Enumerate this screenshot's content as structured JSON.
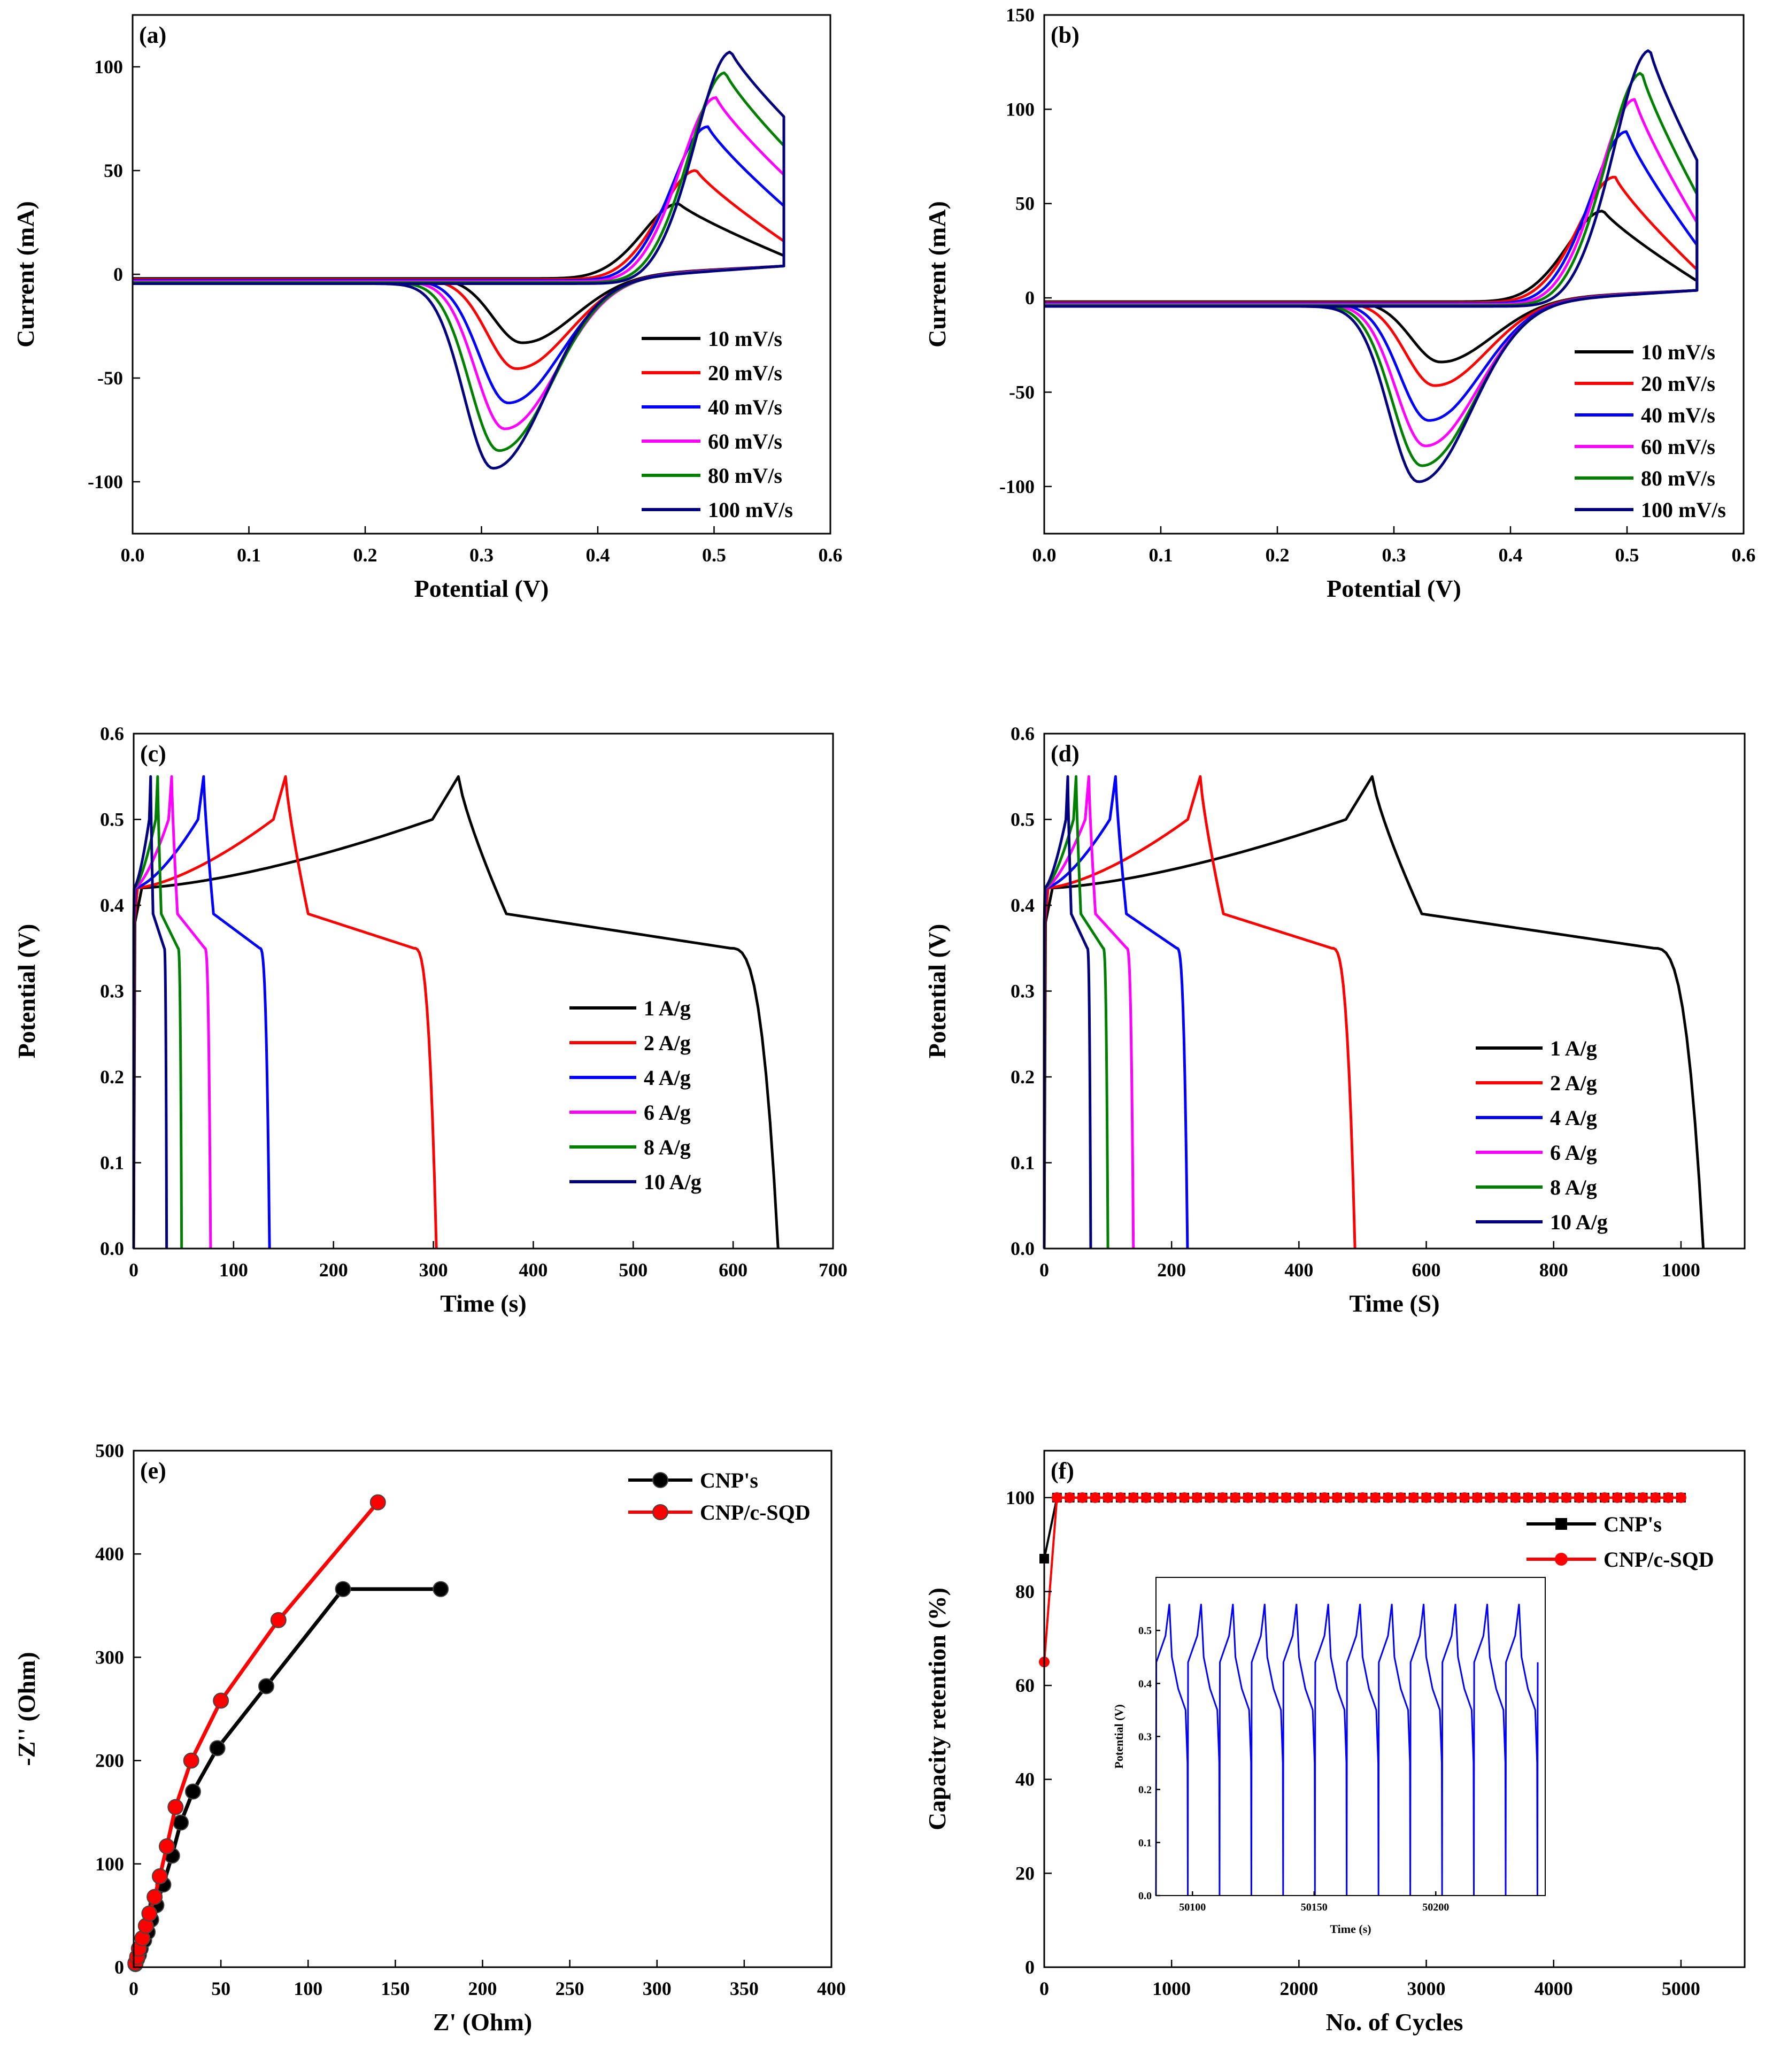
{
  "chart_data": [
    {
      "id": "a",
      "type": "line",
      "panel_label": "(a)",
      "xlabel": "Potential (V)",
      "ylabel": "Current (mA)",
      "xlim": [
        0,
        0.6
      ],
      "ylim": [
        -125,
        125
      ],
      "xticks": [
        0.0,
        0.1,
        0.2,
        0.3,
        0.4,
        0.5,
        0.6
      ],
      "xtick_labels": [
        "0.0",
        "0.1",
        "0.2",
        "0.3",
        "0.4",
        "0.5",
        "0.6"
      ],
      "yticks": [
        -100,
        -50,
        0,
        50,
        100
      ],
      "ytick_labels": [
        "-100",
        "-50",
        "0",
        "50",
        "100"
      ],
      "legend_position": "bottom-right",
      "series": [
        {
          "name": "10 mV/s",
          "color": "#000000",
          "anodic": {
            "peak_v": 0.47,
            "peak_i": 34,
            "end_i": 9
          },
          "cathodic": {
            "peak_v": 0.335,
            "peak_i": -31
          },
          "baseline": -2
        },
        {
          "name": "20 mV/s",
          "color": "#ff0000",
          "anodic": {
            "peak_v": 0.485,
            "peak_i": 50,
            "end_i": 16
          },
          "cathodic": {
            "peak_v": 0.33,
            "peak_i": -43
          },
          "baseline": -2.5
        },
        {
          "name": "40 mV/s",
          "color": "#0000ff",
          "anodic": {
            "peak_v": 0.495,
            "peak_i": 71,
            "end_i": 33
          },
          "cathodic": {
            "peak_v": 0.323,
            "peak_i": -59
          },
          "baseline": -3
        },
        {
          "name": "60 mV/s",
          "color": "#ff00ff",
          "anodic": {
            "peak_v": 0.502,
            "peak_i": 85,
            "end_i": 48
          },
          "cathodic": {
            "peak_v": 0.32,
            "peak_i": -71
          },
          "baseline": -3.5
        },
        {
          "name": "80 mV/s",
          "color": "#008000",
          "anodic": {
            "peak_v": 0.51,
            "peak_i": 97,
            "end_i": 62
          },
          "cathodic": {
            "peak_v": 0.315,
            "peak_i": -81
          },
          "baseline": -4
        },
        {
          "name": "100 mV/s",
          "color": "#000080",
          "anodic": {
            "peak_v": 0.515,
            "peak_i": 107,
            "end_i": 76
          },
          "cathodic": {
            "peak_v": 0.31,
            "peak_i": -89
          },
          "baseline": -4.5
        }
      ]
    },
    {
      "id": "b",
      "type": "line",
      "panel_label": "(b)",
      "xlabel": "Potential (V)",
      "ylabel": "Current (mA)",
      "xlim": [
        0,
        0.6
      ],
      "ylim": [
        -125,
        150
      ],
      "xticks": [
        0.0,
        0.1,
        0.2,
        0.3,
        0.4,
        0.5,
        0.6
      ],
      "xtick_labels": [
        "0.0",
        "0.1",
        "0.2",
        "0.3",
        "0.4",
        "0.5",
        "0.6"
      ],
      "yticks": [
        -100,
        -50,
        0,
        50,
        100,
        150
      ],
      "ytick_labels": [
        "-100",
        "-50",
        "0",
        "50",
        "100",
        "150"
      ],
      "legend_position": "bottom-right",
      "series": [
        {
          "name": "10 mV/s",
          "color": "#000000",
          "anodic": {
            "peak_v": 0.48,
            "peak_i": 46,
            "end_i": 9
          },
          "cathodic": {
            "peak_v": 0.34,
            "peak_i": -32
          },
          "baseline": -2
        },
        {
          "name": "20 mV/s",
          "color": "#ff0000",
          "anodic": {
            "peak_v": 0.49,
            "peak_i": 64,
            "end_i": 15
          },
          "cathodic": {
            "peak_v": 0.335,
            "peak_i": -44
          },
          "baseline": -2.5
        },
        {
          "name": "40 mV/s",
          "color": "#0000ff",
          "anodic": {
            "peak_v": 0.5,
            "peak_i": 88,
            "end_i": 28
          },
          "cathodic": {
            "peak_v": 0.33,
            "peak_i": -62
          },
          "baseline": -3
        },
        {
          "name": "60 mV/s",
          "color": "#ff00ff",
          "anodic": {
            "peak_v": 0.507,
            "peak_i": 105,
            "end_i": 40
          },
          "cathodic": {
            "peak_v": 0.327,
            "peak_i": -75
          },
          "baseline": -3.5
        },
        {
          "name": "80 mV/s",
          "color": "#008000",
          "anodic": {
            "peak_v": 0.513,
            "peak_i": 119,
            "end_i": 55
          },
          "cathodic": {
            "peak_v": 0.324,
            "peak_i": -85
          },
          "baseline": -4
        },
        {
          "name": "100 mV/s",
          "color": "#000080",
          "anodic": {
            "peak_v": 0.52,
            "peak_i": 131,
            "end_i": 73
          },
          "cathodic": {
            "peak_v": 0.321,
            "peak_i": -93
          },
          "baseline": -4.5
        }
      ]
    },
    {
      "id": "c",
      "type": "line",
      "panel_label": "(c)",
      "xlabel": "Time (s)",
      "ylabel": "Potential (V)",
      "xlim": [
        0,
        700
      ],
      "ylim": [
        0,
        0.6
      ],
      "xticks": [
        0,
        100,
        200,
        300,
        400,
        500,
        600,
        700
      ],
      "xtick_labels": [
        "0",
        "100",
        "200",
        "300",
        "400",
        "500",
        "600",
        "700"
      ],
      "yticks": [
        0.0,
        0.1,
        0.2,
        0.3,
        0.4,
        0.5,
        0.6
      ],
      "ytick_labels": [
        "0.0",
        "0.1",
        "0.2",
        "0.3",
        "0.4",
        "0.5",
        "0.6"
      ],
      "legend_position": "center",
      "series": [
        {
          "name": "1 A/g",
          "color": "#000000",
          "charge_end_s": 325,
          "discharge_end_s": 645
        },
        {
          "name": "2 A/g",
          "color": "#ff0000",
          "charge_end_s": 152,
          "discharge_end_s": 303
        },
        {
          "name": "4 A/g",
          "color": "#0000ff",
          "charge_end_s": 70,
          "discharge_end_s": 136
        },
        {
          "name": "6 A/g",
          "color": "#ff00ff",
          "charge_end_s": 38,
          "discharge_end_s": 77
        },
        {
          "name": "8 A/g",
          "color": "#008000",
          "charge_end_s": 24,
          "discharge_end_s": 48
        },
        {
          "name": "10 A/g",
          "color": "#000080",
          "charge_end_s": 17,
          "discharge_end_s": 33
        }
      ]
    },
    {
      "id": "d",
      "type": "line",
      "panel_label": "(d)",
      "xlabel": "Time (S)",
      "ylabel": "Potential (V)",
      "xlim": [
        0,
        1100
      ],
      "ylim": [
        0,
        0.6
      ],
      "xticks": [
        0,
        200,
        400,
        600,
        800,
        1000
      ],
      "xtick_labels": [
        "0",
        "200",
        "400",
        "600",
        "800",
        "1000"
      ],
      "yticks": [
        0.0,
        0.1,
        0.2,
        0.3,
        0.4,
        0.5,
        0.6
      ],
      "ytick_labels": [
        "0.0",
        "0.1",
        "0.2",
        "0.3",
        "0.4",
        "0.5",
        "0.6"
      ],
      "legend_position": "center-left",
      "series": [
        {
          "name": "1 A/g",
          "color": "#000000",
          "charge_end_s": 515,
          "discharge_end_s": 1035
        },
        {
          "name": "2 A/g",
          "color": "#ff0000",
          "charge_end_s": 245,
          "discharge_end_s": 488
        },
        {
          "name": "4 A/g",
          "color": "#0000ff",
          "charge_end_s": 112,
          "discharge_end_s": 225
        },
        {
          "name": "6 A/g",
          "color": "#ff00ff",
          "charge_end_s": 70,
          "discharge_end_s": 140
        },
        {
          "name": "8 A/g",
          "color": "#008000",
          "charge_end_s": 50,
          "discharge_end_s": 100
        },
        {
          "name": "10 A/g",
          "color": "#000080",
          "charge_end_s": 37,
          "discharge_end_s": 73
        }
      ]
    },
    {
      "id": "e",
      "type": "scatter",
      "panel_label": "(e)",
      "xlabel": "Z' (Ohm)",
      "ylabel": "-Z'' (Ohm)",
      "xlim": [
        0,
        400
      ],
      "ylim": [
        0,
        500
      ],
      "xticks": [
        0,
        50,
        100,
        150,
        200,
        250,
        300,
        350,
        400
      ],
      "xtick_labels": [
        "0",
        "50",
        "100",
        "150",
        "200",
        "250",
        "300",
        "350",
        "400"
      ],
      "yticks": [
        0,
        100,
        200,
        300,
        400,
        500
      ],
      "ytick_labels": [
        "0",
        "100",
        "200",
        "300",
        "400",
        "500"
      ],
      "legend_position": "top-right",
      "series": [
        {
          "name": "CNP's",
          "color": "#000000",
          "x": [
            1,
            2,
            3,
            4,
            6,
            8,
            10,
            13,
            17,
            22,
            27,
            34,
            48,
            76,
            120,
            176
          ],
          "y": [
            3,
            8,
            12,
            18,
            26,
            34,
            46,
            60,
            80,
            108,
            140,
            170,
            212,
            272,
            366,
            366
          ]
        },
        {
          "name": "CNP/c-SQD",
          "color": "#ff0000",
          "x": [
            1,
            2,
            3,
            5,
            7,
            9,
            12,
            15,
            19,
            24,
            33,
            50,
            83,
            140
          ],
          "y": [
            4,
            10,
            18,
            28,
            40,
            52,
            68,
            88,
            117,
            155,
            200,
            258,
            336,
            450
          ]
        }
      ]
    },
    {
      "id": "f",
      "type": "line",
      "panel_label": "(f)",
      "xlabel": "No. of Cycles",
      "ylabel": "Capacity retention (%)",
      "xlim": [
        0,
        5500
      ],
      "ylim": [
        0,
        110
      ],
      "xticks": [
        0,
        1000,
        2000,
        3000,
        4000,
        5000
      ],
      "xtick_labels": [
        "0",
        "1000",
        "2000",
        "3000",
        "4000",
        "5000"
      ],
      "yticks": [
        0,
        20,
        40,
        60,
        80,
        100
      ],
      "ytick_labels": [
        "0",
        "20",
        "40",
        "60",
        "80",
        "100"
      ],
      "legend_position": "top-right",
      "series": [
        {
          "name": "CNP's",
          "color": "#000000",
          "marker": "square",
          "first_point": [
            0,
            87
          ],
          "plateau": 100,
          "x_start": 100,
          "x_end": 5000,
          "x_step": 100
        },
        {
          "name": "CNP/c-SQD",
          "color": "#ff0000",
          "marker": "circle",
          "first_point": [
            0,
            65
          ],
          "plateau": 100,
          "x_start": 100,
          "x_end": 5000,
          "x_step": 100
        }
      ],
      "inset": {
        "type": "line",
        "xlabel": "Time (s)",
        "ylabel": "Potential (V)",
        "xlim": [
          50085,
          50245
        ],
        "ylim": [
          0,
          0.6
        ],
        "xticks": [
          50100,
          50150,
          50200
        ],
        "xtick_labels": [
          "50100",
          "50150",
          "50200"
        ],
        "yticks": [
          0.0,
          0.1,
          0.2,
          0.3,
          0.4,
          0.5
        ],
        "ytick_labels": [
          "0.0",
          "0.1",
          "0.2",
          "0.3",
          "0.4",
          "0.5"
        ],
        "color": "#0000ff",
        "cycle_count": 12,
        "max_v": 0.55
      }
    }
  ]
}
